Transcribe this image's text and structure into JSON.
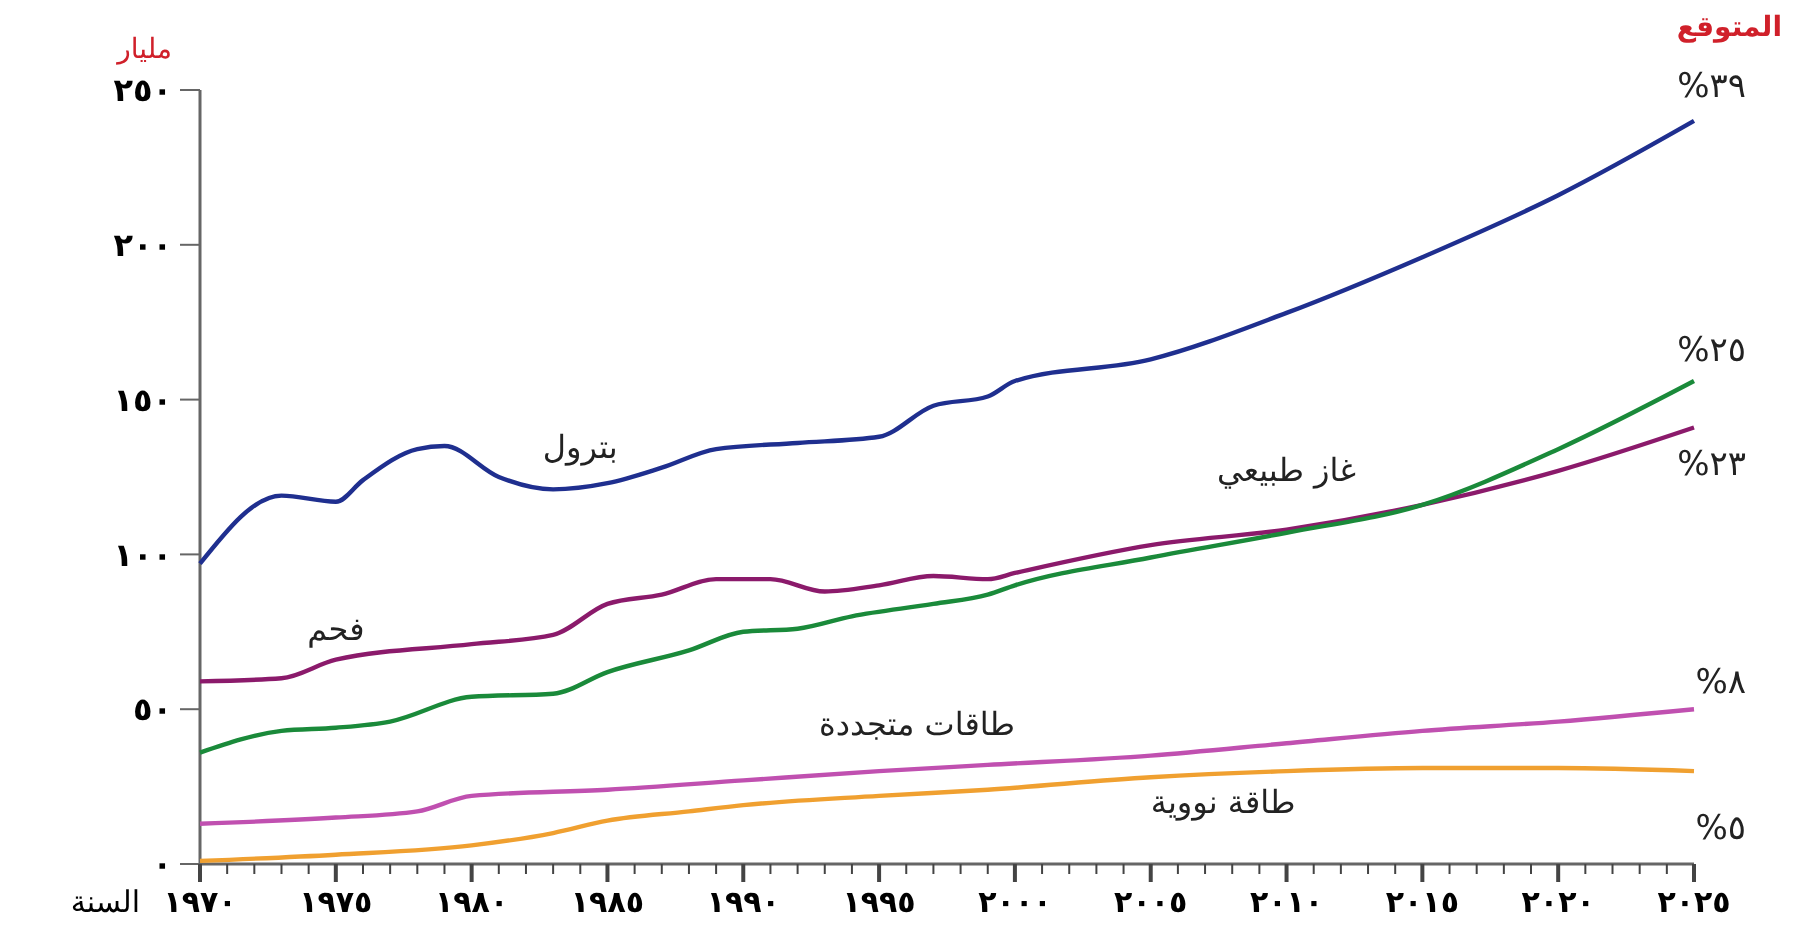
{
  "chart_data": {
    "type": "line",
    "ylabel": "مليار",
    "xlabel": "السنة",
    "x": [
      1970,
      1973,
      1975,
      1976,
      1978,
      1979,
      1981,
      1983,
      1985,
      1987,
      1989,
      1992,
      1995,
      1997,
      1999,
      2000,
      2005,
      2010,
      2015,
      2020,
      2025
    ],
    "series": [
      {
        "name": "بترول",
        "color": "#1f2f8f",
        "values": [
          97,
          119,
          117,
          124,
          134,
          135,
          125,
          121,
          123,
          128,
          134,
          136,
          138,
          148,
          151,
          156,
          163,
          178,
          196,
          216,
          240
        ]
      },
      {
        "name": "فحم",
        "color": "#8b1a6b",
        "x": [
          1970,
          1973,
          1975,
          1980,
          1983,
          1985,
          1987,
          1989,
          1991,
          1993,
          1995,
          1997,
          1999,
          2000,
          2005,
          2010,
          2015,
          2020,
          2025
        ],
        "values": [
          59,
          60,
          66,
          71,
          74,
          84,
          87,
          92,
          92,
          88,
          90,
          93,
          92,
          94,
          103,
          108,
          116,
          127,
          141
        ]
      },
      {
        "name": "غاز طبيعي",
        "color": "#1a8a3a",
        "x": [
          1970,
          1973,
          1975,
          1977,
          1980,
          1983,
          1985,
          1988,
          1990,
          1992,
          1994,
          1997,
          1999,
          2000,
          2005,
          2010,
          2015,
          2020,
          2025
        ],
        "values": [
          36,
          43,
          44,
          46,
          54,
          55,
          62,
          69,
          75,
          76,
          80,
          84,
          87,
          90,
          99,
          107,
          116,
          134,
          156
        ]
      },
      {
        "name": "طاقات متجددة",
        "color": "#c050b0",
        "x": [
          1970,
          1975,
          1978,
          1980,
          1985,
          1990,
          1995,
          1999,
          2005,
          2010,
          2015,
          2020,
          2025
        ],
        "values": [
          13,
          15,
          17,
          22,
          24,
          27,
          30,
          32,
          35,
          39,
          43,
          46,
          50
        ]
      },
      {
        "name": "طاقة نووية",
        "color": "#f0a030",
        "x": [
          1970,
          1975,
          1980,
          1983,
          1985,
          1988,
          1990,
          1995,
          1999,
          2005,
          2010,
          2015,
          2020,
          2025
        ],
        "values": [
          1,
          3,
          6,
          10,
          14,
          17,
          19,
          22,
          24,
          28,
          30,
          31,
          31,
          30
        ]
      }
    ],
    "xlim": [
      1970,
      2025
    ],
    "xticks": [
      {
        "value": 1970,
        "label": "١٩٧٠"
      },
      {
        "value": 1971,
        "label": null
      },
      {
        "value": 1972,
        "label": null
      },
      {
        "value": 1973,
        "label": null
      },
      {
        "value": 1974,
        "label": null
      },
      {
        "value": 1975,
        "label": "١٩٧٥"
      },
      {
        "value": 1976,
        "label": null
      },
      {
        "value": 1977,
        "label": null
      },
      {
        "value": 1978,
        "label": null
      },
      {
        "value": 1979,
        "label": null
      },
      {
        "value": 1980,
        "label": "١٩٨٠"
      },
      {
        "value": 1981,
        "label": null
      },
      {
        "value": 1982,
        "label": null
      },
      {
        "value": 1983,
        "label": null
      },
      {
        "value": 1984,
        "label": null
      },
      {
        "value": 1985,
        "label": "١٩٨٥"
      },
      {
        "value": 1986,
        "label": null
      },
      {
        "value": 1987,
        "label": null
      },
      {
        "value": 1988,
        "label": null
      },
      {
        "value": 1989,
        "label": null
      },
      {
        "value": 1990,
        "label": "١٩٩٠"
      },
      {
        "value": 1991,
        "label": null
      },
      {
        "value": 1992,
        "label": null
      },
      {
        "value": 1993,
        "label": null
      },
      {
        "value": 1994,
        "label": null
      },
      {
        "value": 1995,
        "label": "١٩٩٥"
      },
      {
        "value": 1996,
        "label": null
      },
      {
        "value": 1997,
        "label": null
      },
      {
        "value": 1998,
        "label": null
      },
      {
        "value": 1999,
        "label": null
      },
      {
        "value": 2000,
        "label": "٢٠٠٠"
      },
      {
        "value": 2001,
        "label": null
      },
      {
        "value": 2002,
        "label": null
      },
      {
        "value": 2003,
        "label": null
      },
      {
        "value": 2004,
        "label": null
      },
      {
        "value": 2005,
        "label": "٢٠٠٥"
      },
      {
        "value": 2006,
        "label": null
      },
      {
        "value": 2007,
        "label": null
      },
      {
        "value": 2008,
        "label": null
      },
      {
        "value": 2009,
        "label": null
      },
      {
        "value": 2010,
        "label": "٢٠١٠"
      },
      {
        "value": 2011,
        "label": null
      },
      {
        "value": 2012,
        "label": null
      },
      {
        "value": 2013,
        "label": null
      },
      {
        "value": 2014,
        "label": null
      },
      {
        "value": 2015,
        "label": "٢٠١٥"
      },
      {
        "value": 2016,
        "label": null
      },
      {
        "value": 2017,
        "label": null
      },
      {
        "value": 2018,
        "label": null
      },
      {
        "value": 2019,
        "label": null
      },
      {
        "value": 2020,
        "label": "٢٠٢٠"
      },
      {
        "value": 2021,
        "label": null
      },
      {
        "value": 2022,
        "label": null
      },
      {
        "value": 2023,
        "label": null
      },
      {
        "value": 2024,
        "label": null
      },
      {
        "value": 2025,
        "label": "٢٠٢٥"
      }
    ],
    "ylim": [
      0,
      250
    ],
    "yticks": [
      {
        "value": 0,
        "label": "٠"
      },
      {
        "value": 50,
        "label": "٥٠"
      },
      {
        "value": 100,
        "label": "١٠٠"
      },
      {
        "value": 150,
        "label": "١٥٠"
      },
      {
        "value": 200,
        "label": "٢٠٠"
      },
      {
        "value": 250,
        "label": "٢٥٠"
      }
    ],
    "annotations": [
      "المتوقع",
      "%٣٩",
      "%٢٥",
      "%٢٣",
      "%٨",
      "%٥"
    ],
    "grid": false,
    "legend": false,
    "marker": "none",
    "line_style": "solid"
  }
}
